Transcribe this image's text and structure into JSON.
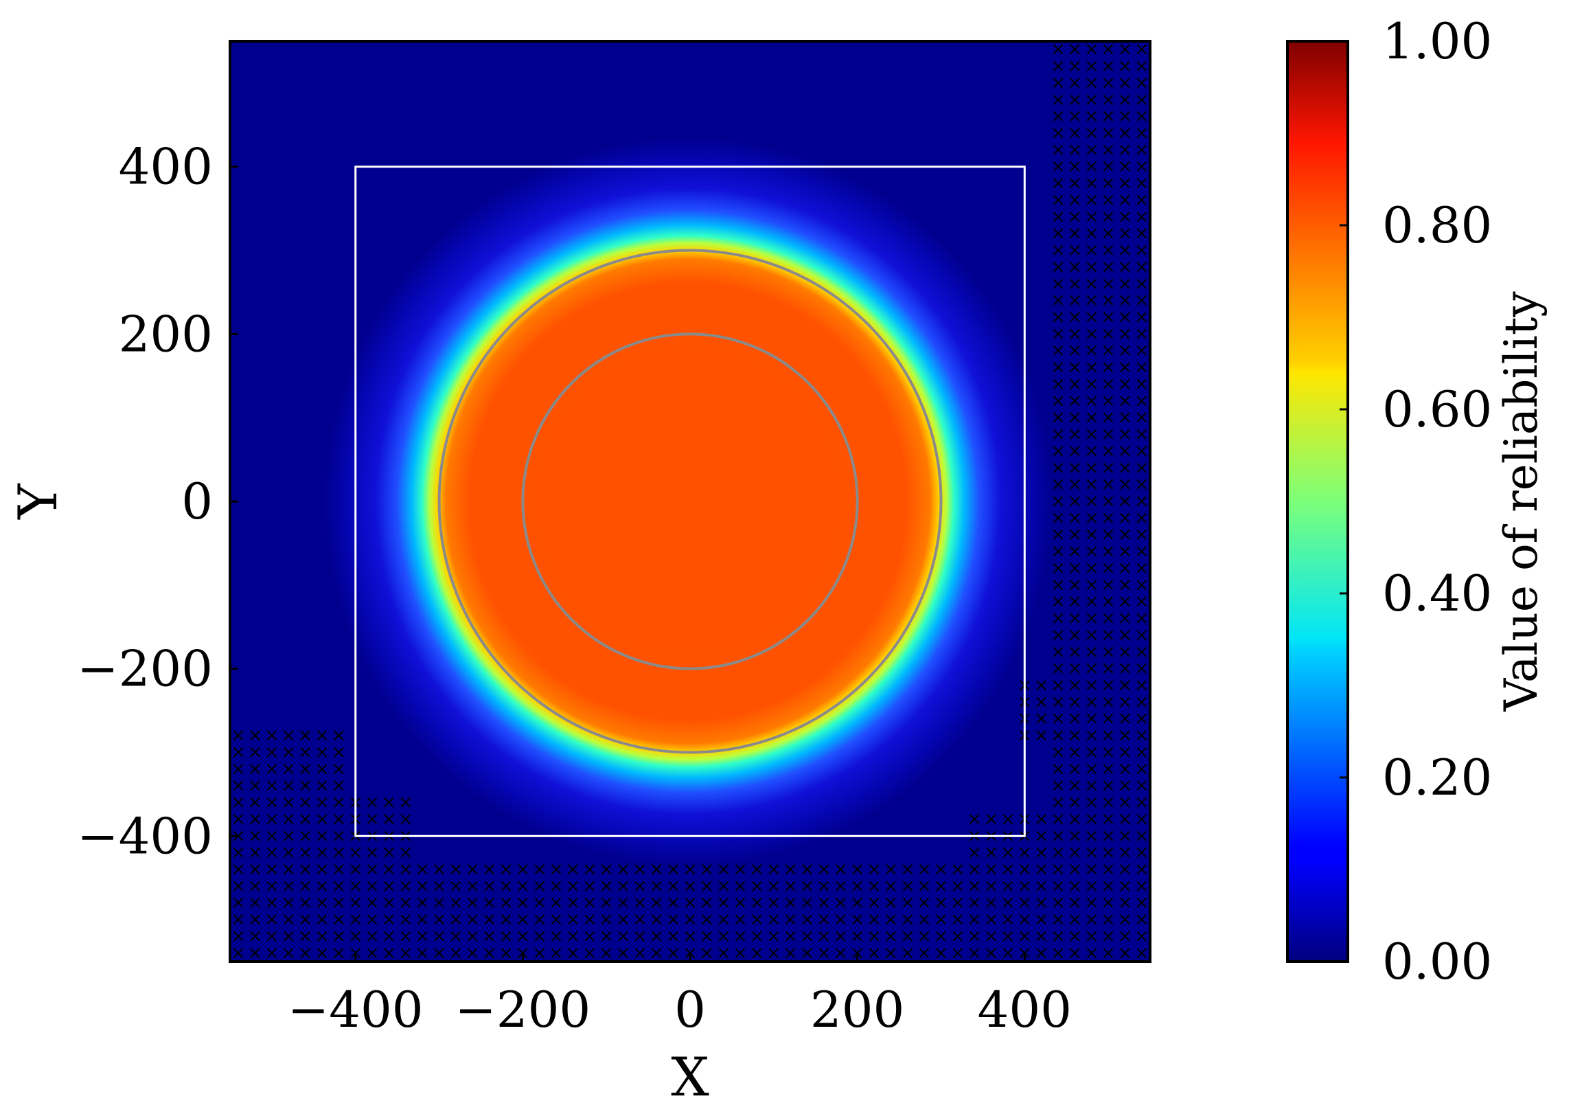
{
  "chart_data": {
    "type": "heatmap",
    "xlabel": "X",
    "ylabel": "Y",
    "xlim": [
      -550,
      550
    ],
    "ylim": [
      -550,
      550
    ],
    "x_ticks": [
      -400,
      -200,
      0,
      200,
      400
    ],
    "y_ticks": [
      -400,
      -200,
      0,
      200,
      400
    ],
    "x_tick_labels": [
      "−400",
      "−200",
      "0",
      "200",
      "400"
    ],
    "y_tick_labels": [
      "−400",
      "−200",
      "0",
      "200",
      "400"
    ],
    "colorbar": {
      "label": "Value of reliability",
      "range": [
        0,
        1
      ],
      "ticks": [
        0.0,
        0.2,
        0.4,
        0.6,
        0.8,
        1.0
      ],
      "tick_labels": [
        "0.00",
        "0.20",
        "0.40",
        "0.60",
        "0.80",
        "1.00"
      ],
      "colormap": "jet"
    },
    "field": {
      "description_value": "radial reliability field",
      "plateau_value": 0.86,
      "plateau_radius": 325,
      "background_value": 0.02
    },
    "white_square": {
      "x_min": -400,
      "x_max": 400,
      "y_min": -400,
      "y_max": 400
    },
    "gray_circles_radii": [
      200,
      300
    ],
    "marker_region_symbol": "×",
    "colors": {
      "plateau": "#ff5000",
      "background": "#00008f",
      "square": "#ffffff",
      "circles": "#8a8a8a",
      "markers": "#ffffff"
    }
  }
}
